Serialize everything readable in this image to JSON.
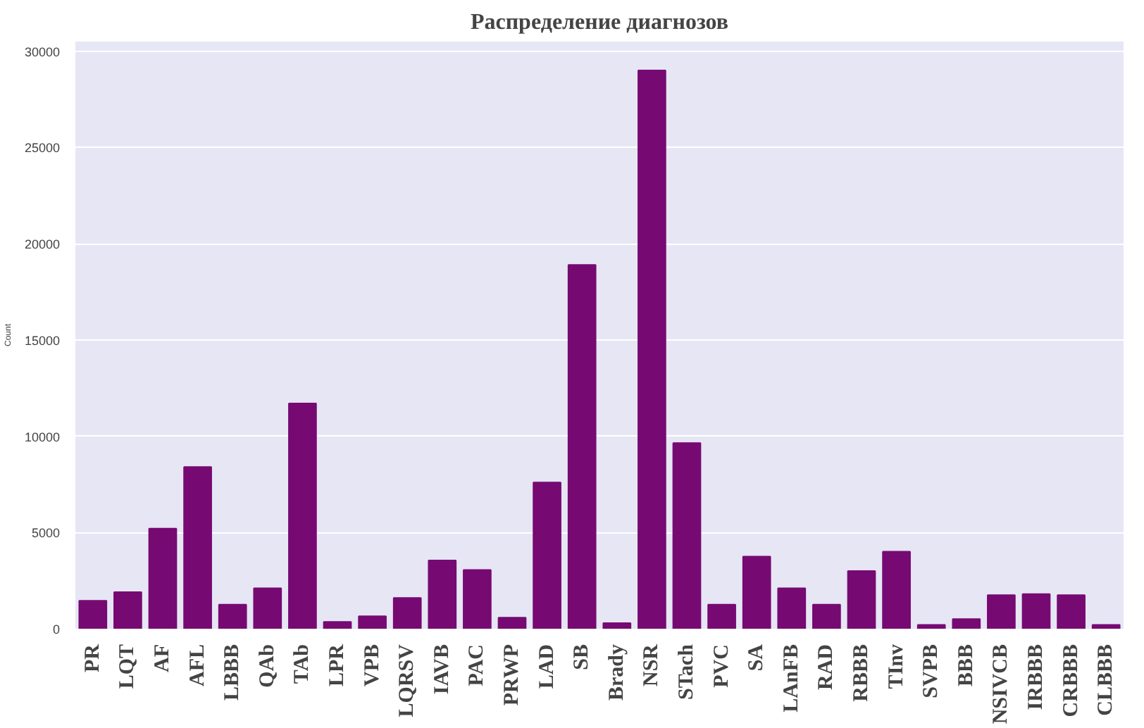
{
  "chart_data": {
    "type": "bar",
    "title": "Распределение диагнозов",
    "ylabel": "Count",
    "categories": [
      "PR",
      "LQT",
      "AF",
      "AFL",
      "LBBB",
      "QAb",
      "TAb",
      "LPR",
      "VPB",
      "LQRSV",
      "IAVB",
      "PAC",
      "PRWP",
      "LAD",
      "SB",
      "Brady",
      "NSR",
      "STach",
      "PVC",
      "SA",
      "LAnFB",
      "RAD",
      "RBBB",
      "TInv",
      "SVPB",
      "BBB",
      "NSIVCB",
      "IRBBB",
      "CRBBB",
      "CLBBB"
    ],
    "values": [
      1450,
      1900,
      5200,
      8400,
      1250,
      2100,
      11700,
      360,
      650,
      1600,
      3550,
      3050,
      580,
      7600,
      18900,
      290,
      29000,
      9650,
      1250,
      3750,
      2100,
      1250,
      3000,
      4000,
      200,
      500,
      1750,
      1800,
      1750,
      200
    ],
    "color": "#760a72",
    "ylim": [
      0,
      30500
    ],
    "yticks": [
      0,
      5000,
      10000,
      15000,
      20000,
      25000,
      30000
    ],
    "grid": "y"
  }
}
